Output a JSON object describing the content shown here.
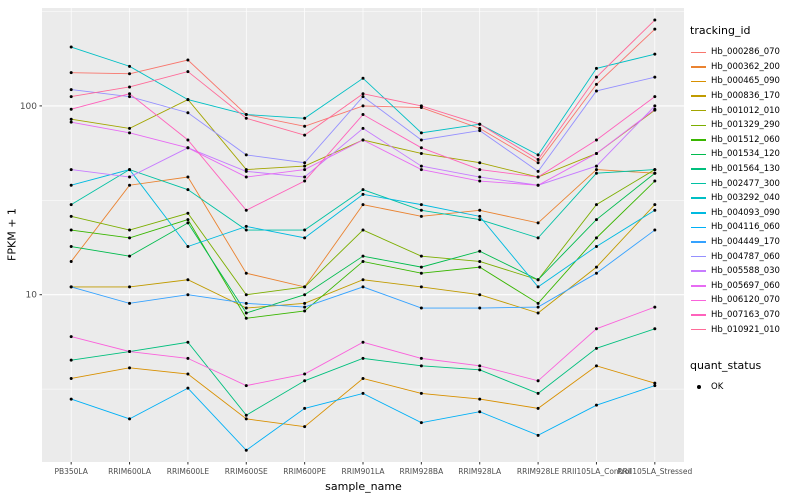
{
  "panel": {
    "bg": "#EBEBEB",
    "grid_color": "#FFFFFF",
    "tick_color": "#333333",
    "tick_label_color": "#4D4D4D",
    "point_color": "#000000"
  },
  "chart_data": {
    "type": "line",
    "title": "",
    "xlabel": "sample_name",
    "ylabel": "FPKM + 1",
    "yscale": "log10",
    "ylim": [
      1.3,
      330
    ],
    "grid": true,
    "legend_position": "right",
    "legend_title": "tracking_id",
    "yticks": [
      {
        "value": 10,
        "label": "10"
      },
      {
        "value": 100,
        "label": "100"
      }
    ],
    "minor_gridlines": [
      3.162,
      31.62,
      316.2
    ],
    "categories": [
      "PB350LA",
      "RRIM600LA",
      "RRIM600LE",
      "RRIM600SE",
      "RRIM600PE",
      "RRIM901LA",
      "RRIM928BA",
      "RRIM928LA",
      "RRIM928LE",
      "RRII105LA_Control",
      "RRII105LA_Stressed"
    ],
    "series": [
      {
        "name": "Hb_000286_070",
        "color": "#F8766D",
        "values": [
          150,
          148,
          175,
          90,
          78,
          100,
          98,
          76,
          50,
          130,
          255
        ]
      },
      {
        "name": "Hb_000362_200",
        "color": "#EA8331",
        "values": [
          15,
          38,
          42,
          13,
          11,
          30,
          26,
          28,
          24,
          46,
          44
        ]
      },
      {
        "name": "Hb_000465_090",
        "color": "#D89000",
        "values": [
          3.6,
          4.1,
          3.8,
          2.2,
          2.0,
          3.6,
          3.0,
          2.8,
          2.5,
          4.2,
          3.4
        ]
      },
      {
        "name": "Hb_000836_170",
        "color": "#C09B00",
        "values": [
          11,
          11,
          12,
          8.5,
          9,
          12,
          11,
          10,
          8,
          14,
          30
        ]
      },
      {
        "name": "Hb_001012_010",
        "color": "#A3A500",
        "values": [
          85,
          76,
          108,
          46,
          48,
          66,
          56,
          50,
          42,
          56,
          95
        ]
      },
      {
        "name": "Hb_001329_290",
        "color": "#7CAE00",
        "values": [
          26,
          22,
          27,
          10,
          11,
          22,
          16,
          15,
          12,
          30,
          46
        ]
      },
      {
        "name": "Hb_001512_060",
        "color": "#39B600",
        "values": [
          22,
          20,
          25,
          7.5,
          8.2,
          15,
          13,
          14,
          9,
          20,
          40
        ]
      },
      {
        "name": "Hb_001534_120",
        "color": "#00BB4E",
        "values": [
          18,
          16,
          24,
          8,
          10,
          16,
          14,
          17,
          12,
          25,
          44
        ]
      },
      {
        "name": "Hb_001564_130",
        "color": "#00BF7D",
        "values": [
          4.5,
          5.0,
          5.6,
          2.3,
          3.5,
          4.6,
          4.2,
          4.0,
          3.0,
          5.2,
          6.6
        ]
      },
      {
        "name": "Hb_002477_300",
        "color": "#00C1A3",
        "values": [
          30,
          46,
          36,
          22,
          22,
          36,
          28,
          25,
          20,
          44,
          46
        ]
      },
      {
        "name": "Hb_003292_040",
        "color": "#00BFC4",
        "values": [
          205,
          162,
          108,
          90,
          86,
          140,
          72,
          80,
          55,
          158,
          188
        ]
      },
      {
        "name": "Hb_004093_090",
        "color": "#00BAE0",
        "values": [
          38,
          46,
          18,
          23,
          20,
          34,
          30,
          26,
          11,
          18,
          28
        ]
      },
      {
        "name": "Hb_004116_060",
        "color": "#00B0F6",
        "values": [
          2.8,
          2.2,
          3.2,
          1.5,
          2.5,
          3.0,
          2.1,
          2.4,
          1.8,
          2.6,
          3.3
        ]
      },
      {
        "name": "Hb_004449_170",
        "color": "#35A2FF",
        "values": [
          11,
          9,
          10,
          9,
          8.6,
          11,
          8.5,
          8.5,
          8.6,
          13,
          22
        ]
      },
      {
        "name": "Hb_004787_060",
        "color": "#9590FF",
        "values": [
          122,
          112,
          92,
          55,
          50,
          112,
          66,
          74,
          45,
          120,
          142
        ]
      },
      {
        "name": "Hb_005588_030",
        "color": "#C77CFF",
        "values": [
          46,
          42,
          60,
          45,
          42,
          76,
          48,
          42,
          38,
          48,
          100
        ]
      },
      {
        "name": "Hb_005697_060",
        "color": "#E76BF3",
        "values": [
          82,
          72,
          60,
          42,
          46,
          66,
          46,
          40,
          38,
          56,
          96
        ]
      },
      {
        "name": "Hb_006120_070",
        "color": "#FA62DB",
        "values": [
          6.0,
          5.0,
          4.6,
          3.3,
          3.8,
          5.6,
          4.6,
          4.2,
          3.5,
          6.6,
          8.6
        ]
      },
      {
        "name": "Hb_007163_070",
        "color": "#FF62BC",
        "values": [
          96,
          116,
          66,
          28,
          40,
          90,
          60,
          46,
          42,
          66,
          112
        ]
      },
      {
        "name": "Hb_010921_010",
        "color": "#FF6A98",
        "values": [
          112,
          126,
          152,
          86,
          70,
          116,
          100,
          80,
          52,
          142,
          285
        ]
      }
    ],
    "quant_legend": {
      "title": "quant_status",
      "items": [
        {
          "label": "OK",
          "symbol": "point",
          "color": "#000000"
        }
      ]
    }
  }
}
